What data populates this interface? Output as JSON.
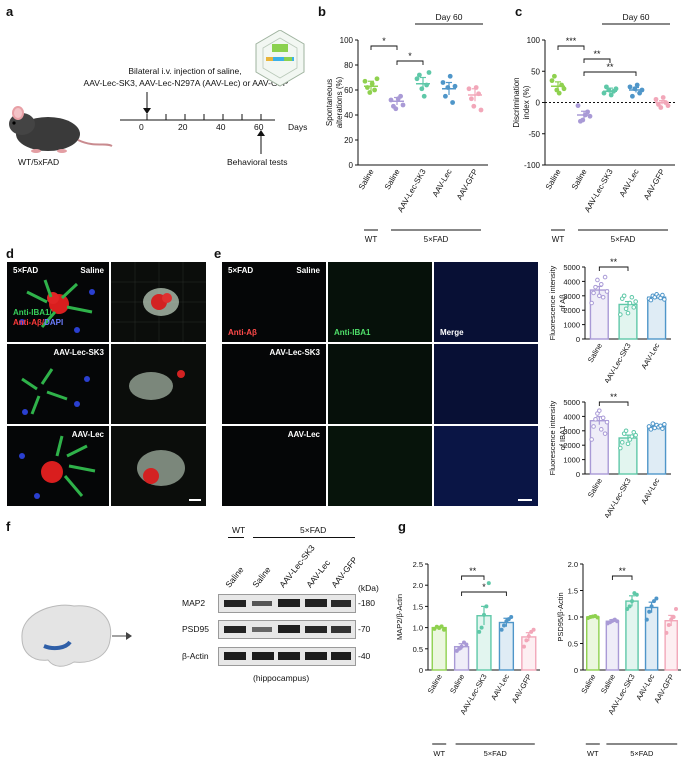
{
  "panel_labels": {
    "a": "a",
    "b": "b",
    "c": "c",
    "d": "d",
    "e": "e",
    "f": "f",
    "g": "g"
  },
  "panel_a": {
    "injection_text_1": "Bilateral i.v. injection of saline,",
    "injection_text_2": "AAV-Lec-SK3,  AAV-Lec-N297A (AAV-Lec) or AAV-GFP",
    "mouse_label": "WT/5xFAD",
    "timeline_ticks": [
      "0",
      "20",
      "40",
      "60"
    ],
    "timeline_unit": "Days",
    "behavior_label": "Behavioral tests"
  },
  "panel_d": {
    "group_5xfad": "5×FAD",
    "saline": "Saline",
    "lec_sk3": "AAV-Lec-SK3",
    "lec": "AAV-Lec",
    "stain_iba1": "Anti-IBA1/",
    "stain_ab": "Anti-Aβ/",
    "stain_dapi": "DAPI"
  },
  "panel_e": {
    "group_5xfad": "5×FAD",
    "saline": "Saline",
    "lec_sk3": "AAV-Lec-SK3",
    "lec": "AAV-Lec",
    "col_ab": "Anti-Aβ",
    "col_iba1": "Anti-IBA1",
    "col_merge": "Merge"
  },
  "panel_f": {
    "wt": "WT",
    "fad": "5×FAD",
    "lanes": [
      "Saline",
      "Saline",
      "AAV-Lec-SK3",
      "AAV-Lec",
      "AAV-GFP"
    ],
    "rows": [
      "MAP2",
      "PSD95",
      "β-Actin"
    ],
    "kda_header": "(kDa)",
    "kda": [
      "-180",
      "-70",
      "-40"
    ],
    "tissue": "(hippocampus)"
  },
  "colors": {
    "wt_saline": "#8fd14f",
    "fad_saline": "#a99ad6",
    "lec_sk3": "#5fc8a8",
    "lec": "#4f96c9",
    "gfp": "#f2a7b9"
  },
  "chart_data": [
    {
      "id": "b",
      "type": "scatter",
      "title": "",
      "day_label": "Day 60",
      "ylabel": "Spontaneous alterations (%)",
      "yticks": [
        0,
        20,
        40,
        60,
        80,
        100
      ],
      "ylim": [
        0,
        100
      ],
      "categories": [
        "Saline",
        "Saline",
        "AAV-Lec-SK3",
        "AAV-Lec",
        "AAV-GFP"
      ],
      "group_wt": "WT",
      "group_fad": "5×FAD",
      "means": [
        63,
        51,
        65,
        61,
        56
      ],
      "sems": [
        4,
        3,
        5,
        5,
        5
      ],
      "points": [
        [
          67,
          62,
          58,
          65,
          60,
          69
        ],
        [
          52,
          47,
          45,
          53,
          55,
          48
        ],
        [
          69,
          72,
          61,
          55,
          64,
          74
        ],
        [
          66,
          55,
          62,
          71,
          50,
          63
        ],
        [
          61,
          53,
          47,
          62,
          57,
          44
        ]
      ],
      "sig": [
        {
          "from": 0,
          "to": 1,
          "label": "*"
        },
        {
          "from": 1,
          "to": 2,
          "label": "*"
        }
      ]
    },
    {
      "id": "c",
      "type": "scatter",
      "title": "",
      "day_label": "Day 60",
      "ylabel": "Discrimination index (%)",
      "yticks": [
        -100,
        -50,
        0,
        50,
        100
      ],
      "ylim": [
        -100,
        100
      ],
      "categories": [
        "Saline",
        "Saline",
        "AAV-Lec-SK3",
        "AAV-Lec",
        "AAV-GFP"
      ],
      "group_wt": "WT",
      "group_fad": "5×FAD",
      "means": [
        26,
        -20,
        18,
        20,
        0
      ],
      "sems": [
        7,
        6,
        5,
        4,
        3
      ],
      "points": [
        [
          35,
          42,
          20,
          15,
          28,
          22
        ],
        [
          -5,
          -30,
          -28,
          -20,
          -15,
          -22
        ],
        [
          15,
          25,
          20,
          12,
          18,
          22
        ],
        [
          25,
          10,
          22,
          28,
          15,
          20
        ],
        [
          5,
          -3,
          -8,
          8,
          0,
          -5
        ]
      ],
      "sig": [
        {
          "from": 0,
          "to": 1,
          "label": "***"
        },
        {
          "from": 1,
          "to": 2,
          "label": "**"
        },
        {
          "from": 1,
          "to": 3,
          "label": "**"
        }
      ]
    },
    {
      "id": "e_top",
      "type": "bar",
      "title": "",
      "ylabel": "Fluorescence intensity of Aβ",
      "yticks": [
        0,
        1000,
        2000,
        3000,
        4000,
        5000
      ],
      "ylim": [
        0,
        5000
      ],
      "categories": [
        "Saline",
        "AAV-Lec-SK3",
        "AAV-Lec"
      ],
      "values": [
        3400,
        2400,
        2900
      ],
      "sems": [
        250,
        200,
        100
      ],
      "points": [
        [
          2500,
          3200,
          3600,
          4100,
          3000,
          3800,
          2900,
          4300,
          3300
        ],
        [
          1700,
          2800,
          3000,
          2100,
          1800,
          2500,
          2900,
          2200,
          2600
        ],
        [
          2800,
          2700,
          3000,
          2900,
          3100,
          2950,
          2850,
          3050,
          2750
        ]
      ],
      "sig": [
        {
          "from": 0,
          "to": 1,
          "label": "**"
        }
      ]
    },
    {
      "id": "e_bottom",
      "type": "bar",
      "title": "",
      "ylabel": "Fluorescence intensity of IBA1",
      "yticks": [
        0,
        1000,
        2000,
        3000,
        4000,
        5000
      ],
      "ylim": [
        0,
        5000
      ],
      "categories": [
        "Saline",
        "AAV-Lec-SK3",
        "AAV-Lec"
      ],
      "values": [
        3700,
        2500,
        3300
      ],
      "sems": [
        280,
        200,
        80
      ],
      "points": [
        [
          2400,
          3300,
          3800,
          4200,
          4400,
          3100,
          3900,
          2800,
          3600
        ],
        [
          1800,
          2200,
          2800,
          3000,
          2100,
          2400,
          2600,
          2900,
          2700
        ],
        [
          3300,
          3100,
          3500,
          3200,
          3400,
          3250,
          3350,
          3150,
          3450
        ]
      ],
      "sig": [
        {
          "from": 0,
          "to": 1,
          "label": "**"
        }
      ]
    },
    {
      "id": "g_left",
      "type": "bar",
      "title": "",
      "ylabel": "MAP2/β-Actin",
      "yticks": [
        0,
        0.5,
        1.0,
        1.5,
        2.0,
        2.5
      ],
      "ylim": [
        0,
        2.5
      ],
      "categories": [
        "Saline",
        "Saline",
        "AAV-Lec-SK3",
        "AAV-Lec",
        "AAV-GFP"
      ],
      "group_wt": "WT",
      "group_fad": "5×FAD",
      "values": [
        1.0,
        0.55,
        1.28,
        1.12,
        0.78
      ],
      "sems": [
        0.03,
        0.07,
        0.22,
        0.1,
        0.1
      ],
      "points": [
        [
          0.97,
          1.02,
          0.99,
          1.03,
          0.95
        ],
        [
          0.45,
          0.5,
          0.55,
          0.65,
          0.6
        ],
        [
          0.9,
          1.0,
          1.3,
          1.5,
          2.05
        ],
        [
          0.95,
          1.05,
          1.15,
          1.2,
          1.25
        ],
        [
          0.55,
          0.7,
          0.8,
          0.9,
          0.95
        ]
      ],
      "sig": [
        {
          "from": 1,
          "to": 2,
          "label": "**"
        },
        {
          "from": 1,
          "to": 3,
          "label": "*"
        }
      ]
    },
    {
      "id": "g_right",
      "type": "bar",
      "title": "",
      "ylabel": "PSD95/β-Actin",
      "yticks": [
        0,
        0.5,
        1.0,
        1.5,
        2.0
      ],
      "ylim": [
        0,
        2.0
      ],
      "categories": [
        "Saline",
        "Saline",
        "AAV-Lec-SK3",
        "AAV-Lec",
        "AAV-GFP"
      ],
      "group_wt": "WT",
      "group_fad": "5×FAD",
      "values": [
        1.0,
        0.92,
        1.3,
        1.18,
        0.93
      ],
      "sems": [
        0.02,
        0.03,
        0.1,
        0.1,
        0.1
      ],
      "points": [
        [
          0.98,
          1.0,
          1.01,
          1.02,
          0.99
        ],
        [
          0.88,
          0.9,
          0.93,
          0.95,
          0.92
        ],
        [
          1.15,
          1.2,
          1.3,
          1.45,
          1.42
        ],
        [
          0.95,
          1.1,
          1.2,
          1.3,
          1.35
        ],
        [
          0.7,
          0.85,
          0.95,
          1.0,
          1.15
        ]
      ],
      "sig": [
        {
          "from": 1,
          "to": 2,
          "label": "**"
        }
      ]
    }
  ]
}
